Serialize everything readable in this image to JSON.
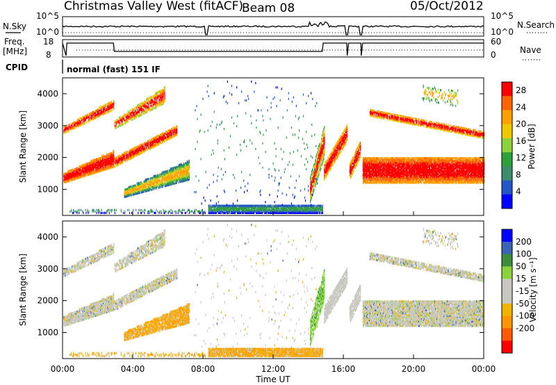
{
  "header": {
    "station_title": "Christmas Valley West (fitACF)",
    "beam": "Beam 08",
    "date": "05/Oct/2012"
  },
  "strips": {
    "nsky_label": "N.Sky",
    "nsky_ticks": [
      "10^5",
      "10^0"
    ],
    "nsearch_label": "N.Search",
    "freq_label_1": "Freq.",
    "freq_label_2": "[MHz]",
    "freq_ticks": [
      "18",
      "8"
    ],
    "nave_label": "Nave",
    "nave_ticks": [
      "60",
      "0"
    ],
    "cpid_label": "CPID",
    "cpid_value": "normal (fast) 151 IF"
  },
  "colors": {
    "power_scale": [
      "#0000ff",
      "#2456c8",
      "#3c8c6e",
      "#2ea03a",
      "#8cd23c",
      "#f0c800",
      "#ffa000",
      "#ff6400",
      "#ff0000"
    ],
    "velocity_scale": [
      "#ff0000",
      "#ff5a00",
      "#ff9600",
      "#f0b400",
      "#c8c8c0",
      "#c8c8c0",
      "#8cd23c",
      "#3c8c3c",
      "#3c64b4",
      "#0000ff"
    ],
    "velocity_gray": "#c8c8c0"
  },
  "chart_data": [
    {
      "type": "heatmap",
      "name": "power",
      "ylabel": "Slant Range [km]",
      "ylim": [
        180,
        4500
      ],
      "yticks": [
        "1000",
        "2000",
        "3000",
        "4000"
      ],
      "colorbar_label": "Power [dB]",
      "colorbar_ticks": [
        "4",
        "8",
        "12",
        "16",
        "20",
        "24",
        "28"
      ],
      "colorbar_range": [
        0,
        30
      ]
    },
    {
      "type": "heatmap",
      "name": "velocity",
      "ylabel": "Slant Range [km]",
      "ylim": [
        180,
        4500
      ],
      "yticks": [
        "1000",
        "2000",
        "3000",
        "4000"
      ],
      "colorbar_label": "Velocity [m s⁻¹]",
      "colorbar_ticks": [
        "200",
        "100",
        "50",
        "15",
        "-15",
        "-50",
        "-100",
        "-200"
      ]
    }
  ],
  "time_axis": {
    "xlabel": "Time UT",
    "xticks": [
      "00:00",
      "04:00",
      "08:00",
      "12:00",
      "16:00",
      "20:00",
      "00:00"
    ],
    "xlim_hours": [
      0,
      24
    ]
  }
}
